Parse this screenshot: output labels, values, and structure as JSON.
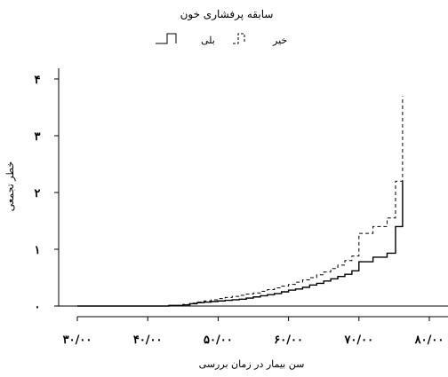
{
  "chart_data": {
    "type": "line",
    "step": true,
    "title": "سابقه پرفشاری خون",
    "xlabel": "سن بیمار در زمان بررسی",
    "ylabel": "خطر تجمعی",
    "xlim": [
      28,
      82
    ],
    "ylim": [
      -0.1,
      4.15
    ],
    "x_ticks": [
      30,
      40,
      50,
      60,
      70,
      80
    ],
    "x_tick_labels": [
      "۳۰/۰۰",
      "۴۰/۰۰",
      "۵۰/۰۰",
      "۶۰/۰۰",
      "۷۰/۰۰",
      "۸۰/۰۰"
    ],
    "y_ticks": [
      0,
      1,
      2,
      3,
      4
    ],
    "y_tick_labels": [
      "۰",
      "۱",
      "۲",
      "۳",
      "۴"
    ],
    "legend": {
      "placement": "top-center"
    },
    "series": [
      {
        "name": "بلی",
        "style": "solid",
        "x": [
          30,
          33,
          36,
          40,
          43,
          45,
          46,
          47,
          48,
          49,
          50,
          51,
          52,
          53,
          54,
          55,
          56,
          57,
          58,
          59,
          60,
          61,
          62,
          63,
          64,
          65,
          66,
          67,
          68,
          69,
          70,
          72,
          74,
          75.2,
          76.2
        ],
        "y": [
          0.0,
          0.0,
          0.0,
          0.0,
          0.01,
          0.02,
          0.04,
          0.06,
          0.07,
          0.08,
          0.09,
          0.1,
          0.11,
          0.12,
          0.14,
          0.16,
          0.18,
          0.2,
          0.22,
          0.25,
          0.28,
          0.3,
          0.33,
          0.37,
          0.4,
          0.44,
          0.48,
          0.52,
          0.56,
          0.62,
          0.78,
          0.86,
          0.93,
          1.4,
          2.2
        ]
      },
      {
        "name": "خیر",
        "style": "dashed",
        "x": [
          30,
          33,
          36,
          40,
          43,
          45,
          46,
          47,
          48,
          49,
          50,
          51,
          52,
          53,
          54,
          55,
          56,
          57,
          58,
          59,
          60,
          61,
          62,
          63,
          64,
          65,
          66,
          67,
          68,
          69,
          70,
          72,
          74,
          75.2,
          76.2
        ],
        "y": [
          0.0,
          0.0,
          0.0,
          0.0,
          0.01,
          0.03,
          0.05,
          0.07,
          0.09,
          0.11,
          0.13,
          0.15,
          0.17,
          0.19,
          0.21,
          0.23,
          0.26,
          0.29,
          0.32,
          0.35,
          0.38,
          0.42,
          0.46,
          0.5,
          0.55,
          0.6,
          0.66,
          0.72,
          0.8,
          0.88,
          1.28,
          1.4,
          1.55,
          2.2,
          3.7
        ]
      }
    ]
  }
}
